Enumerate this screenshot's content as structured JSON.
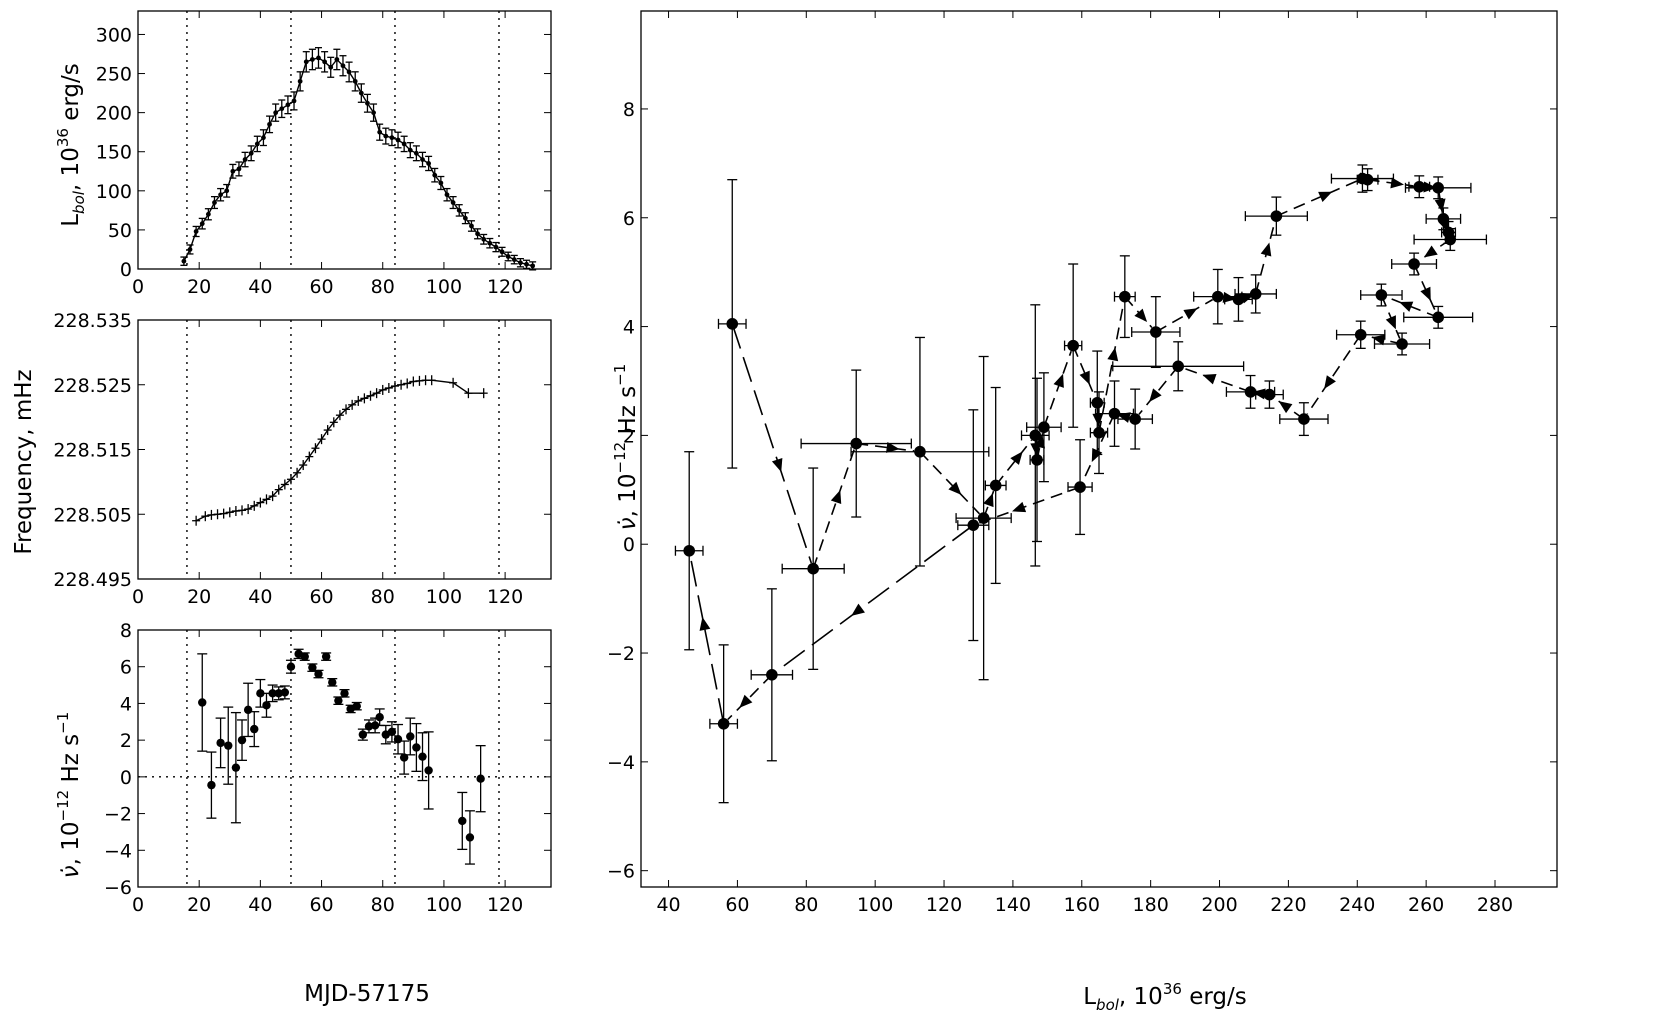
{
  "chart_data": [
    {
      "id": "lum",
      "type": "line",
      "ylabel": "L_bol, 10^36 erg/s",
      "xlim": [
        0,
        135
      ],
      "ylim": [
        0,
        330
      ],
      "xticks": [
        0,
        20,
        40,
        60,
        80,
        100,
        120
      ],
      "yticks": [
        0,
        50,
        100,
        150,
        200,
        250,
        300
      ],
      "vlines": [
        16,
        50,
        84,
        118
      ],
      "points": [
        [
          15,
          10
        ],
        [
          17,
          25
        ],
        [
          19,
          48
        ],
        [
          21,
          58
        ],
        [
          23,
          70
        ],
        [
          25,
          85
        ],
        [
          27,
          95
        ],
        [
          29,
          100
        ],
        [
          31,
          125
        ],
        [
          33,
          128
        ],
        [
          35,
          140
        ],
        [
          37,
          148
        ],
        [
          39,
          160
        ],
        [
          41,
          168
        ],
        [
          43,
          185
        ],
        [
          45,
          200
        ],
        [
          47,
          205
        ],
        [
          49,
          210
        ],
        [
          51,
          215
        ],
        [
          53,
          240
        ],
        [
          55,
          265
        ],
        [
          57,
          268
        ],
        [
          59,
          270
        ],
        [
          61,
          265
        ],
        [
          63,
          258
        ],
        [
          65,
          268
        ],
        [
          67,
          260
        ],
        [
          69,
          252
        ],
        [
          71,
          240
        ],
        [
          73,
          225
        ],
        [
          75,
          212
        ],
        [
          77,
          200
        ],
        [
          79,
          175
        ],
        [
          81,
          170
        ],
        [
          83,
          168
        ],
        [
          85,
          165
        ],
        [
          87,
          160
        ],
        [
          89,
          152
        ],
        [
          91,
          148
        ],
        [
          93,
          140
        ],
        [
          95,
          135
        ],
        [
          97,
          120
        ],
        [
          99,
          110
        ],
        [
          101,
          95
        ],
        [
          103,
          85
        ],
        [
          105,
          75
        ],
        [
          107,
          65
        ],
        [
          109,
          55
        ],
        [
          111,
          45
        ],
        [
          113,
          38
        ],
        [
          115,
          33
        ],
        [
          117,
          28
        ],
        [
          119,
          22
        ],
        [
          121,
          16
        ],
        [
          123,
          12
        ],
        [
          125,
          8
        ],
        [
          127,
          6
        ],
        [
          129,
          4
        ]
      ]
    },
    {
      "id": "freq",
      "type": "line",
      "ylabel": "Frequency, mHz",
      "xlim": [
        0,
        135
      ],
      "ylim": [
        228.495,
        228.535
      ],
      "xticks": [
        0,
        20,
        40,
        60,
        80,
        100,
        120
      ],
      "yticks": [
        228.495,
        228.505,
        228.515,
        228.525,
        228.535
      ],
      "ytick_labels": [
        "228.495",
        "228.505",
        "228.515",
        "228.525",
        "228.535"
      ],
      "vlines": [
        16,
        50,
        84,
        118
      ],
      "points": [
        [
          19,
          228.504
        ],
        [
          22,
          228.5047
        ],
        [
          24,
          228.5049
        ],
        [
          26,
          228.505
        ],
        [
          28,
          228.5051
        ],
        [
          30,
          228.5053
        ],
        [
          32,
          228.5055
        ],
        [
          34,
          228.5056
        ],
        [
          36,
          228.5058
        ],
        [
          38,
          228.5063
        ],
        [
          40,
          228.5068
        ],
        [
          42,
          228.5073
        ],
        [
          44,
          228.5078
        ],
        [
          46,
          228.5088
        ],
        [
          48,
          228.5096
        ],
        [
          50,
          228.5104
        ],
        [
          52,
          228.5114
        ],
        [
          54,
          228.5126
        ],
        [
          56,
          228.5139
        ],
        [
          58,
          228.5152
        ],
        [
          60,
          228.5166
        ],
        [
          62,
          228.518
        ],
        [
          64,
          228.5192
        ],
        [
          66,
          228.5203
        ],
        [
          68,
          228.5212
        ],
        [
          70,
          228.5219
        ],
        [
          72,
          228.5225
        ],
        [
          74,
          228.5229
        ],
        [
          76,
          228.5233
        ],
        [
          78,
          228.5237
        ],
        [
          80,
          228.5242
        ],
        [
          82,
          228.5245
        ],
        [
          84,
          228.5248
        ],
        [
          86,
          228.525
        ],
        [
          88,
          228.5252
        ],
        [
          90,
          228.5255
        ],
        [
          92,
          228.5256
        ],
        [
          94,
          228.5257
        ],
        [
          96,
          228.5257
        ],
        [
          103,
          228.5253
        ],
        [
          108,
          228.5237
        ],
        [
          113,
          228.5237
        ]
      ]
    },
    {
      "id": "nudot",
      "type": "scatter",
      "xlabel": "MJD-57175",
      "ylabel": "ν̇, 10^-12 Hz s^-1",
      "xlim": [
        0,
        135
      ],
      "ylim": [
        -6,
        8
      ],
      "xticks": [
        0,
        20,
        40,
        60,
        80,
        100,
        120
      ],
      "yticks": [
        -6,
        -4,
        -2,
        0,
        2,
        4,
        6,
        8
      ],
      "vlines": [
        16,
        50,
        84,
        118
      ],
      "hline": 0,
      "points": [
        {
          "x": 21,
          "y": 4.05,
          "err": 2.65
        },
        {
          "x": 24,
          "y": -0.45,
          "err": 1.8
        },
        {
          "x": 27,
          "y": 1.85,
          "err": 1.35
        },
        {
          "x": 29.5,
          "y": 1.7,
          "err": 2.1
        },
        {
          "x": 32,
          "y": 0.5,
          "err": 3.0
        },
        {
          "x": 34,
          "y": 2.0,
          "err": 1.1
        },
        {
          "x": 36,
          "y": 3.65,
          "err": 1.45
        },
        {
          "x": 38,
          "y": 2.6,
          "err": 0.95
        },
        {
          "x": 40,
          "y": 4.55,
          "err": 0.75
        },
        {
          "x": 42,
          "y": 3.9,
          "err": 0.65
        },
        {
          "x": 44,
          "y": 4.55,
          "err": 0.45
        },
        {
          "x": 46,
          "y": 4.55,
          "err": 0.35
        },
        {
          "x": 48,
          "y": 4.6,
          "err": 0.35
        },
        {
          "x": 50,
          "y": 6.0,
          "err": 0.35
        },
        {
          "x": 52.5,
          "y": 6.7,
          "err": 0.25
        },
        {
          "x": 54.5,
          "y": 6.55,
          "err": 0.2
        },
        {
          "x": 57,
          "y": 5.95,
          "err": 0.2
        },
        {
          "x": 59,
          "y": 5.6,
          "err": 0.2
        },
        {
          "x": 61.5,
          "y": 6.55,
          "err": 0.2
        },
        {
          "x": 63.5,
          "y": 5.15,
          "err": 0.2
        },
        {
          "x": 65.5,
          "y": 4.15,
          "err": 0.2
        },
        {
          "x": 67.5,
          "y": 4.55,
          "err": 0.2
        },
        {
          "x": 69.5,
          "y": 3.7,
          "err": 0.2
        },
        {
          "x": 71.5,
          "y": 3.85,
          "err": 0.2
        },
        {
          "x": 73.5,
          "y": 2.3,
          "err": 0.3
        },
        {
          "x": 75.5,
          "y": 2.75,
          "err": 0.35
        },
        {
          "x": 77.5,
          "y": 2.8,
          "err": 0.4
        },
        {
          "x": 79,
          "y": 3.25,
          "err": 0.45
        },
        {
          "x": 81,
          "y": 2.3,
          "err": 0.5
        },
        {
          "x": 83,
          "y": 2.45,
          "err": 0.55
        },
        {
          "x": 85,
          "y": 2.05,
          "err": 0.8
        },
        {
          "x": 87,
          "y": 1.05,
          "err": 0.9
        },
        {
          "x": 89,
          "y": 2.2,
          "err": 1.0
        },
        {
          "x": 91,
          "y": 1.6,
          "err": 1.3
        },
        {
          "x": 93,
          "y": 1.1,
          "err": 1.3
        },
        {
          "x": 95,
          "y": 0.35,
          "err": 2.1
        },
        {
          "x": 106,
          "y": -2.4,
          "err": 1.55
        },
        {
          "x": 108.5,
          "y": -3.3,
          "err": 1.45
        },
        {
          "x": 112,
          "y": -0.1,
          "err": 1.8
        }
      ]
    },
    {
      "id": "track",
      "type": "scatter",
      "xlabel": "L_bol, 10^36 erg/s",
      "ylabel": "ν̇, 10^-12 Hz s^-1",
      "xlim": [
        32,
        298
      ],
      "ylim": [
        -6.3,
        9.8
      ],
      "xticks": [
        40,
        60,
        80,
        100,
        120,
        140,
        160,
        180,
        200,
        220,
        240,
        260,
        280
      ],
      "yticks": [
        -6,
        -4,
        -2,
        0,
        2,
        4,
        6,
        8
      ],
      "path_order": "chronological",
      "points": [
        {
          "x": 58.5,
          "y": 4.05,
          "xerr": 4.0,
          "yerr": 2.65
        },
        {
          "x": 82,
          "y": -0.45,
          "xerr": 9.0,
          "yerr": 1.85
        },
        {
          "x": 94.5,
          "y": 1.85,
          "xerr": 16.0,
          "yerr": 1.35
        },
        {
          "x": 113,
          "y": 1.7,
          "xerr": 20.0,
          "yerr": 2.1
        },
        {
          "x": 131.5,
          "y": 0.48,
          "xerr": 8.0,
          "yerr": 2.97
        },
        {
          "x": 135,
          "y": 1.08,
          "xerr": 3.0,
          "yerr": 1.8
        },
        {
          "x": 146.5,
          "y": 2.0,
          "xerr": 4.0,
          "yerr": 2.4
        },
        {
          "x": 147,
          "y": 1.55,
          "xerr": 2.0,
          "yerr": 1.5
        },
        {
          "x": 149,
          "y": 2.15,
          "xerr": 5.0,
          "yerr": 1.0
        },
        {
          "x": 157.5,
          "y": 3.65,
          "xerr": 2.5,
          "yerr": 1.5
        },
        {
          "x": 164.5,
          "y": 2.6,
          "xerr": 2.0,
          "yerr": 0.95
        },
        {
          "x": 165,
          "y": 2.05,
          "xerr": 2.5,
          "yerr": 0.75
        },
        {
          "x": 172.5,
          "y": 4.55,
          "xerr": 3.0,
          "yerr": 0.75
        },
        {
          "x": 181.5,
          "y": 3.9,
          "xerr": 7.0,
          "yerr": 0.65
        },
        {
          "x": 199.5,
          "y": 4.55,
          "xerr": 7.0,
          "yerr": 0.5
        },
        {
          "x": 205.5,
          "y": 4.5,
          "xerr": 4.0,
          "yerr": 0.4
        },
        {
          "x": 210.5,
          "y": 4.6,
          "xerr": 6.0,
          "yerr": 0.35
        },
        {
          "x": 216.5,
          "y": 6.03,
          "xerr": 9.0,
          "yerr": 0.35
        },
        {
          "x": 241.5,
          "y": 6.72,
          "xerr": 9.0,
          "yerr": 0.25
        },
        {
          "x": 243,
          "y": 6.7,
          "xerr": 3.0,
          "yerr": 0.2
        },
        {
          "x": 258,
          "y": 6.57,
          "xerr": 3.0,
          "yerr": 0.2
        },
        {
          "x": 263.5,
          "y": 6.55,
          "xerr": 9.5,
          "yerr": 0.2
        },
        {
          "x": 265,
          "y": 5.98,
          "xerr": 5.0,
          "yerr": 0.2
        },
        {
          "x": 266.5,
          "y": 5.73,
          "xerr": 2.0,
          "yerr": 0.2
        },
        {
          "x": 267,
          "y": 5.6,
          "xerr": 10.5,
          "yerr": 0.2
        },
        {
          "x": 256.5,
          "y": 5.15,
          "xerr": 6.5,
          "yerr": 0.2
        },
        {
          "x": 263.5,
          "y": 4.17,
          "xerr": 10.0,
          "yerr": 0.2
        },
        {
          "x": 247,
          "y": 4.58,
          "xerr": 6.0,
          "yerr": 0.2
        },
        {
          "x": 253,
          "y": 3.68,
          "xerr": 8.0,
          "yerr": 0.2
        },
        {
          "x": 241,
          "y": 3.85,
          "xerr": 7.0,
          "yerr": 0.25
        },
        {
          "x": 224.5,
          "y": 2.3,
          "xerr": 7.0,
          "yerr": 0.3
        },
        {
          "x": 214.5,
          "y": 2.75,
          "xerr": 4.0,
          "yerr": 0.25
        },
        {
          "x": 209,
          "y": 2.8,
          "xerr": 7.0,
          "yerr": 0.3
        },
        {
          "x": 188,
          "y": 3.27,
          "xerr": 19.0,
          "yerr": 0.45
        },
        {
          "x": 175.5,
          "y": 2.3,
          "xerr": 5.0,
          "yerr": 0.55
        },
        {
          "x": 169.5,
          "y": 2.4,
          "xerr": 5.5,
          "yerr": 0.6
        },
        {
          "x": 159.5,
          "y": 1.05,
          "xerr": 3.5,
          "yerr": 0.87
        },
        {
          "x": 128.5,
          "y": 0.35,
          "xerr": 4.5,
          "yerr": 2.12
        },
        {
          "x": 70,
          "y": -2.4,
          "xerr": 6.0,
          "yerr": 1.58
        },
        {
          "x": 56,
          "y": -3.3,
          "xerr": 4.0,
          "yerr": 1.45
        },
        {
          "x": 46,
          "y": -0.12,
          "xerr": 4.0,
          "yerr": 1.82
        }
      ]
    }
  ]
}
